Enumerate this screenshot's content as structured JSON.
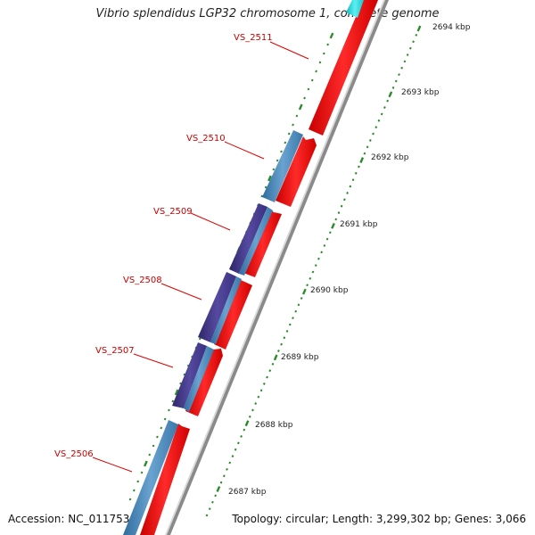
{
  "title": "Vibrio splendidus LGP32 chromosome 1, complete genome",
  "footer": {
    "accession": "Accession: NC_011753",
    "summary": "Topology: circular; Length: 3,299,302 bp; Genes: 3,066"
  },
  "tick_labels": [
    "2694 kbp",
    "2693 kbp",
    "2692 kbp",
    "2691 kbp",
    "2690 kbp",
    "2689 kbp",
    "2688 kbp",
    "2687 kbp"
  ],
  "gene_labels": [
    "VS_2511",
    "VS_2510",
    "VS_2509",
    "VS_2508",
    "VS_2507",
    "VS_2506"
  ],
  "colors": {
    "forward_gene": "#ff1010",
    "reverse_gene": "#4a86b8",
    "reverse_gene_dark": "#443a8a",
    "top_gene": "#22d4d8",
    "backbone": "#8a8a8a",
    "tick": "#2a8a2a",
    "label_line": "#e00000"
  }
}
